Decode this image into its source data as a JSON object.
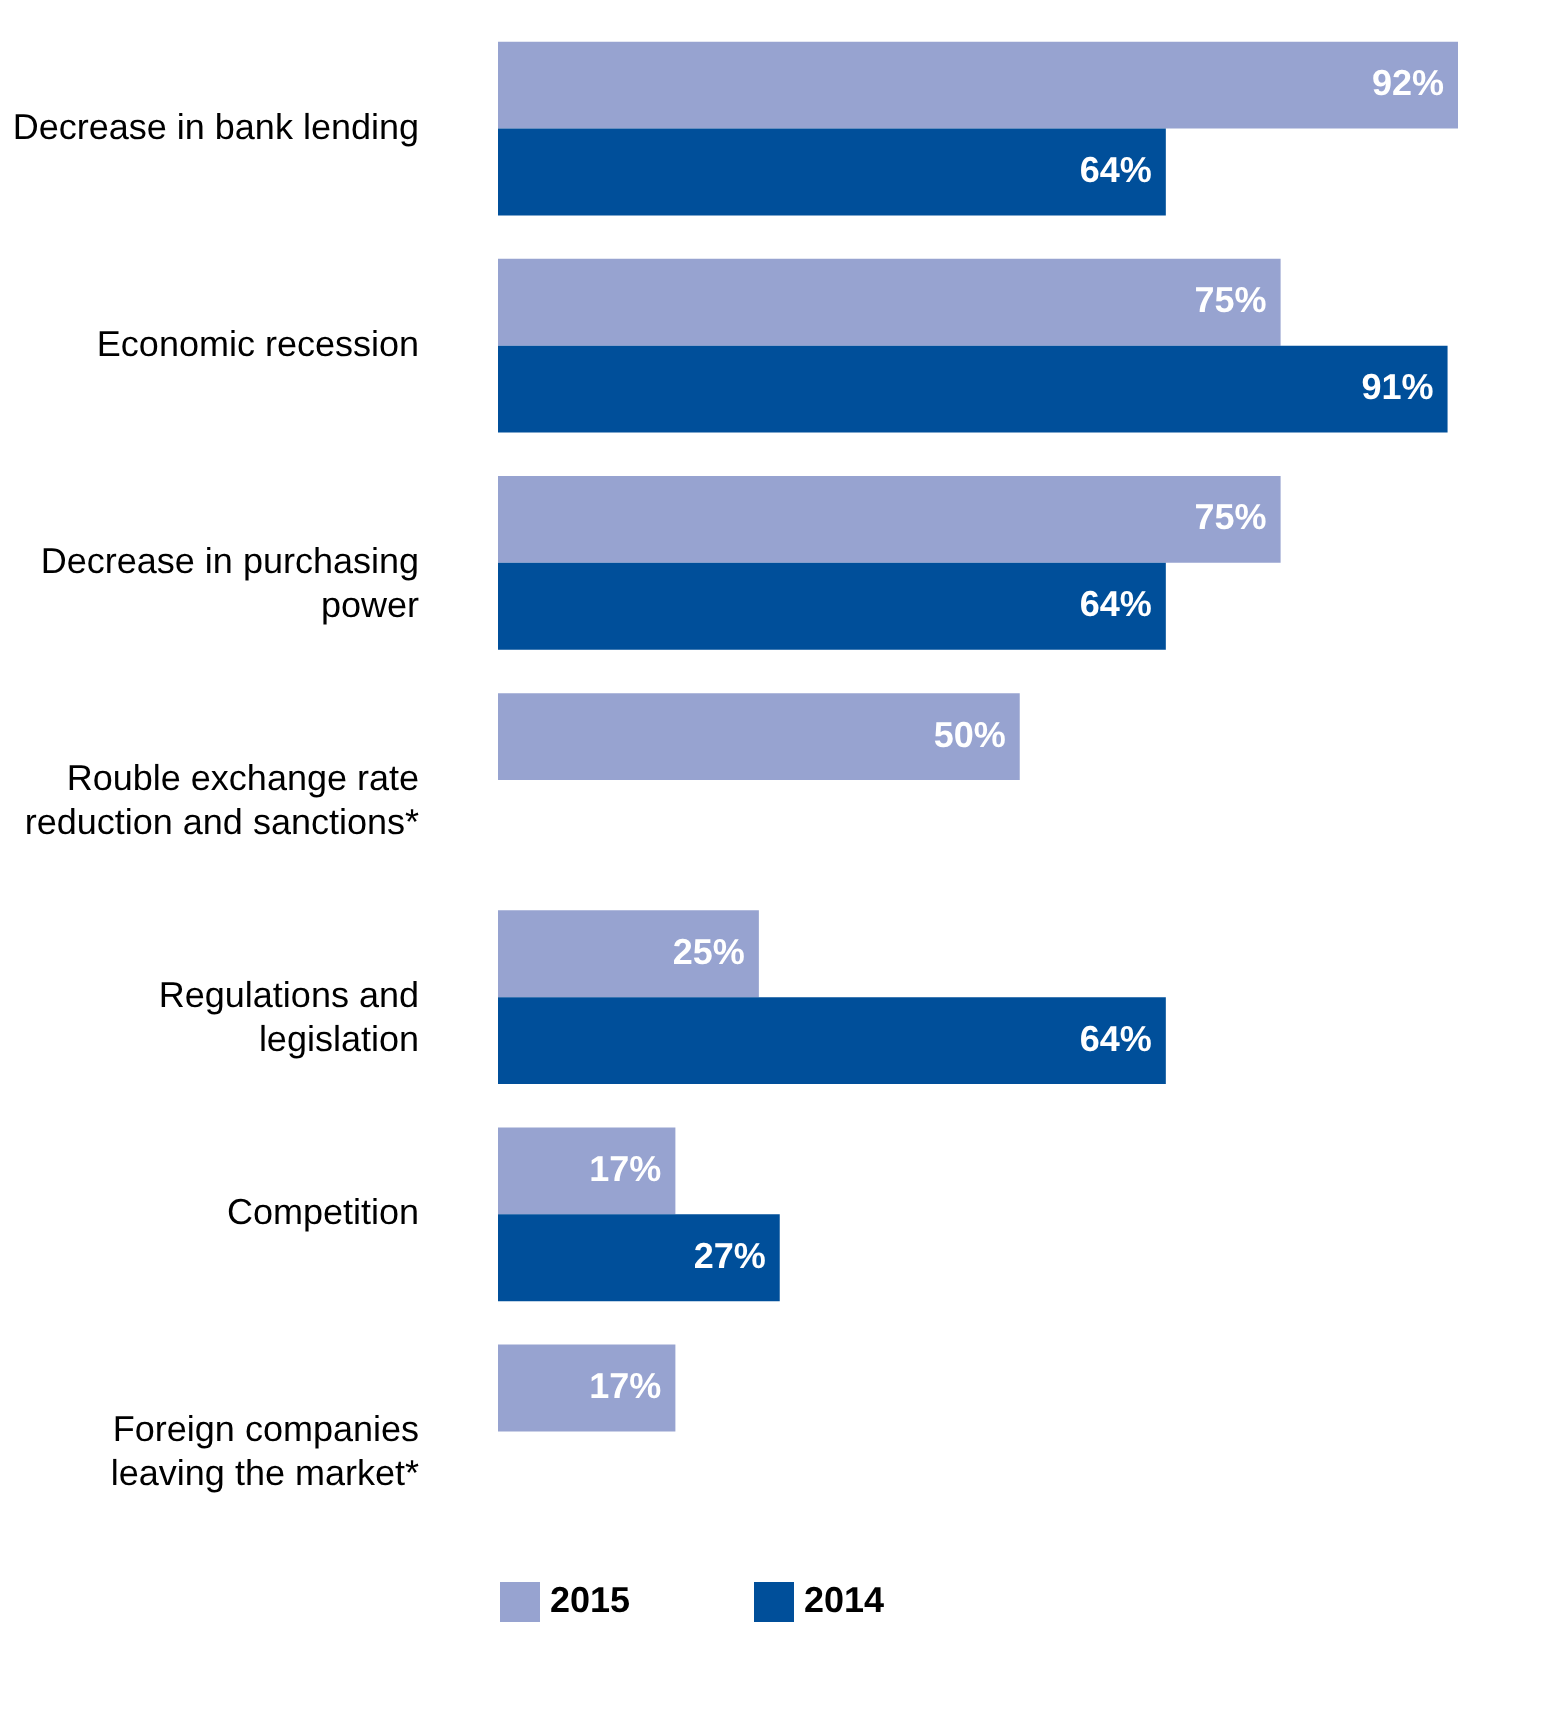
{
  "chart_data": {
    "type": "bar",
    "orientation": "horizontal",
    "legend": "bottom",
    "categories": [
      "Decrease in bank lending",
      "Economic recession",
      "Decrease in purchasing power",
      "Rouble exchange rate reduction and sanctions*",
      "Regulations and legislation",
      "Competition",
      "Foreign companies leaving the market*"
    ],
    "series": [
      {
        "name": "2015",
        "color": "#97a3d0",
        "values": [
          92,
          75,
          75,
          50,
          25,
          17,
          17
        ],
        "value_labels": [
          "92%",
          "75%",
          "75%",
          "50%",
          "25%",
          "17%",
          "17%"
        ]
      },
      {
        "name": "2014",
        "color": "#004f9a",
        "values": [
          64,
          91,
          64,
          null,
          64,
          27,
          null
        ],
        "value_labels": [
          "64%",
          "91%",
          "64%",
          null,
          "64%",
          "27%",
          null
        ]
      }
    ]
  }
}
